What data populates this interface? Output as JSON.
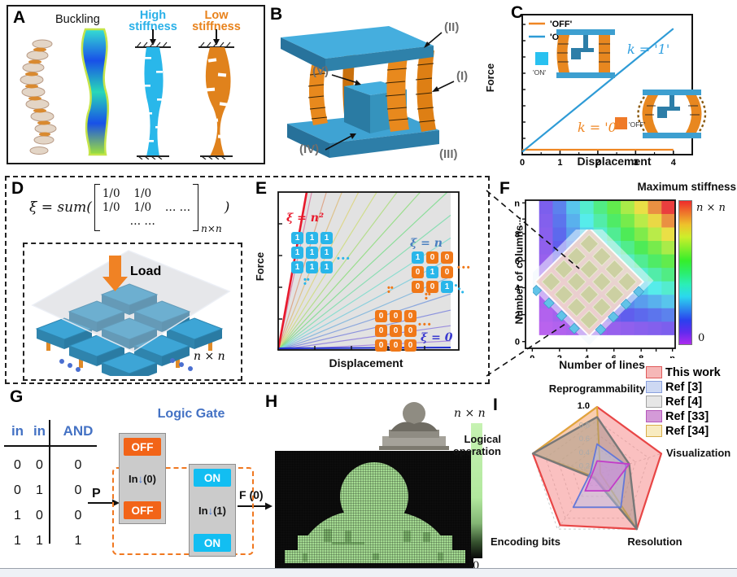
{
  "panels": {
    "A": {
      "tag": "A",
      "buckling": "Buckling",
      "high": "High stiffness",
      "low": "Low stiffness"
    },
    "B": {
      "tag": "B",
      "ann_I": "(I)",
      "ann_II": "(II)",
      "ann_III": "(III)",
      "ann_IV": "(IV)",
      "ann_V": "(V)"
    },
    "C": {
      "tag": "C",
      "ylabel": "Force",
      "xlabel": "Displacement",
      "legend_off": "'OFF'",
      "legend_on": "'ON'",
      "on_tag": "'ON'",
      "off_tag": "'OFF'",
      "k1": "k = '1'",
      "k0": "k = '0'"
    },
    "D": {
      "tag": "D",
      "eq_lhs": "ξ = sum(",
      "eq_close": ")",
      "eq_sub": "n×n",
      "m11": "1/0",
      "m12": "1/0",
      "m21": "1/0",
      "m22": "1/0",
      "m23": "… …",
      "m32": "… …",
      "load": "Load",
      "nxn": "n × n"
    },
    "E": {
      "tag": "E",
      "ylabel": "Force",
      "xlabel": "Displacement",
      "lbl_n2": "ξ = n²",
      "lbl_n": "ξ = n",
      "lbl_0": "ξ = 0"
    },
    "F": {
      "tag": "F",
      "title": "Maximum stiffness",
      "xlabel": "Number of lines",
      "ylabel": "Number of columns",
      "cbar_top": "n × n",
      "cbar_bottom": "0"
    },
    "G": {
      "tag": "G",
      "gate_title": "Logic Gate",
      "p": "P",
      "f_out": "F (0)",
      "in_word": "In",
      "arrow": "↓",
      "in0": "(0)",
      "in1": "(1)",
      "off": "OFF",
      "on": "ON",
      "headers": [
        "in",
        "in",
        "AND"
      ],
      "rows": [
        [
          "0",
          "0",
          "0"
        ],
        [
          "0",
          "1",
          "0"
        ],
        [
          "1",
          "0",
          "0"
        ],
        [
          "1",
          "1",
          "1"
        ]
      ]
    },
    "H": {
      "tag": "H",
      "cbar_top": "n × n",
      "cbar_bottom": "0"
    },
    "I": {
      "tag": "I",
      "legend": [
        {
          "label": "This work",
          "swatch": "#f6b7b7",
          "border": "#e05a5a"
        },
        {
          "label": "Ref [3]",
          "swatch": "#cdd8f3",
          "border": "#8aa0dd"
        },
        {
          "label": "Ref [4]",
          "swatch": "#e6e6e6",
          "border": "#a0a0a0"
        },
        {
          "label": "Ref [33]",
          "swatch": "#d49ad8",
          "border": "#b558bb"
        },
        {
          "label": "Ref [34]",
          "swatch": "#f8ebc0",
          "border": "#d8ae4a"
        }
      ]
    }
  },
  "chart_data": [
    {
      "panel": "C",
      "type": "line",
      "title": "",
      "xlabel": "Displacement",
      "ylabel": "Force",
      "xlim": [
        0,
        4.5
      ],
      "xticks": [
        0,
        1,
        2,
        3,
        4
      ],
      "series": [
        {
          "name": "'OFF'",
          "color": "#ef8623",
          "k_label": "k = '0'",
          "points": [
            [
              0,
              0.035
            ],
            [
              4.0,
              0.035
            ]
          ]
        },
        {
          "name": "'ON'",
          "color": "#2e9bd6",
          "k_label": "k = '1'",
          "points": [
            [
              0,
              0.02
            ],
            [
              4.0,
              0.9
            ]
          ]
        }
      ]
    },
    {
      "panel": "E",
      "type": "line",
      "title": "",
      "xlabel": "Displacement",
      "ylabel": "Force",
      "annotations": [
        "ξ = n²",
        "ξ = n",
        "ξ = 0"
      ],
      "fan_count": 16,
      "matrices": {
        "ones": [
          [
            1,
            1,
            1
          ],
          [
            1,
            1,
            1
          ],
          [
            1,
            1,
            1
          ]
        ],
        "identity": [
          [
            1,
            0,
            0
          ],
          [
            0,
            1,
            0
          ],
          [
            0,
            0,
            1
          ]
        ],
        "zeros": [
          [
            0,
            0,
            0
          ],
          [
            0,
            0,
            0
          ],
          [
            0,
            0,
            0
          ]
        ]
      }
    },
    {
      "panel": "F",
      "type": "heatmap",
      "title": "Maximum stiffness",
      "xlabel": "Number of lines",
      "ylabel": "Number of columns",
      "xticklabels": [
        "0",
        "2",
        "4",
        "6",
        "8",
        "……",
        "n"
      ],
      "yticklabels": [
        "0",
        "2",
        "4",
        "6",
        "8",
        "……",
        "n"
      ],
      "colorbar": {
        "top": "n × n",
        "bottom": "0"
      },
      "values": [
        [
          1,
          2,
          3,
          4,
          5,
          6,
          7,
          8,
          9,
          10
        ],
        [
          2,
          4,
          6,
          8,
          10,
          12,
          14,
          16,
          18,
          20
        ],
        [
          3,
          6,
          9,
          12,
          15,
          18,
          21,
          24,
          27,
          30
        ],
        [
          4,
          8,
          12,
          16,
          20,
          24,
          28,
          32,
          36,
          40
        ],
        [
          5,
          10,
          15,
          20,
          25,
          30,
          35,
          40,
          45,
          50
        ],
        [
          6,
          12,
          18,
          24,
          30,
          36,
          42,
          48,
          54,
          60
        ],
        [
          7,
          14,
          21,
          28,
          35,
          42,
          49,
          56,
          63,
          70
        ],
        [
          8,
          16,
          24,
          32,
          40,
          48,
          56,
          64,
          72,
          80
        ],
        [
          9,
          18,
          27,
          36,
          45,
          54,
          63,
          72,
          81,
          90
        ],
        [
          10,
          20,
          30,
          40,
          50,
          60,
          70,
          80,
          90,
          100
        ]
      ]
    },
    {
      "panel": "I",
      "type": "radar",
      "axes": [
        "Reprogrammability",
        "Visualization",
        "Resolution",
        "Encoding bits",
        "Logical operation"
      ],
      "ticks": [
        0.2,
        0.4,
        0.6,
        0.8,
        1.0
      ],
      "series": [
        {
          "name": "This work",
          "stroke": "#e84646",
          "fill": "rgba(245,140,140,0.55)",
          "width": 2.2,
          "values": [
            1.0,
            1.0,
            1.0,
            0.93,
            1.0
          ]
        },
        {
          "name": "Ref [34]",
          "stroke": "#dfa939",
          "fill": "rgba(248,226,150,0.4)",
          "width": 2.0,
          "values": [
            1.0,
            0.05,
            1.0,
            0.05,
            1.0
          ]
        },
        {
          "name": "Ref [4]",
          "stroke": "#787878",
          "fill": "rgba(150,140,130,0.45)",
          "width": 2.4,
          "values": [
            0.85,
            0.5,
            1.0,
            0.07,
            1.0
          ]
        },
        {
          "name": "Ref [3]",
          "stroke": "#6478d8",
          "fill": "rgba(180,192,240,0.45)",
          "width": 1.8,
          "values": [
            0.45,
            0.45,
            0.6,
            0.6,
            0.1
          ]
        },
        {
          "name": "Ref [33]",
          "stroke": "#c23cc8",
          "fill": "rgba(205,130,215,0.5)",
          "width": 1.8,
          "values": [
            0.2,
            0.5,
            0.3,
            0.3,
            0.07
          ]
        }
      ]
    }
  ]
}
